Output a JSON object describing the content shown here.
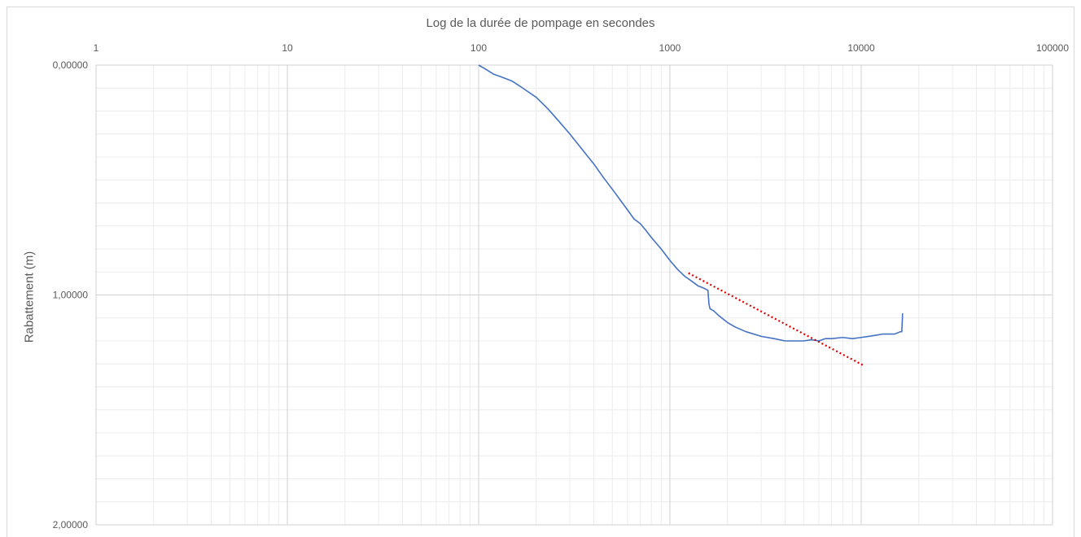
{
  "chart_data": {
    "type": "line",
    "title": "",
    "xlabel": "Log de la durée de pompage en secondes",
    "ylabel": "Rabattement (m)",
    "x_scale": "log",
    "x_axis_position": "top",
    "y_reversed": true,
    "xlim": [
      1,
      100000
    ],
    "ylim": [
      0,
      2
    ],
    "x_ticks": [
      1,
      10,
      100,
      1000,
      10000,
      100000
    ],
    "x_tick_labels": [
      "1",
      "10",
      "100",
      "1000",
      "10000",
      "100000"
    ],
    "y_ticks": [
      0,
      1,
      2
    ],
    "y_tick_labels": [
      "0,00000",
      "1,00000",
      "2,00000"
    ],
    "grid": true,
    "legend": "none",
    "series": [
      {
        "color": "#4472c4",
        "style": "solid",
        "x": [
          100,
          110,
          120,
          130,
          150,
          170,
          200,
          230,
          260,
          300,
          350,
          400,
          450,
          500,
          600,
          650,
          700,
          750,
          800,
          900,
          1000,
          1100,
          1200,
          1300,
          1400,
          1500,
          1580,
          1600,
          1620,
          1700,
          1800,
          2000,
          2200,
          2500,
          3000,
          3500,
          4000,
          4500,
          5000,
          5500,
          6000,
          6500,
          7000,
          8000,
          9000,
          10000,
          11000,
          12000,
          13000,
          14000,
          15000,
          16000,
          16300,
          16400,
          16450
        ],
        "y": [
          0.0,
          0.02,
          0.04,
          0.05,
          0.07,
          0.1,
          0.14,
          0.19,
          0.24,
          0.3,
          0.37,
          0.43,
          0.49,
          0.54,
          0.63,
          0.67,
          0.69,
          0.72,
          0.75,
          0.8,
          0.85,
          0.89,
          0.92,
          0.94,
          0.96,
          0.97,
          0.98,
          1.04,
          1.06,
          1.07,
          1.09,
          1.12,
          1.14,
          1.16,
          1.18,
          1.19,
          1.2,
          1.2,
          1.2,
          1.195,
          1.2,
          1.19,
          1.19,
          1.185,
          1.19,
          1.185,
          1.18,
          1.175,
          1.17,
          1.17,
          1.17,
          1.16,
          1.16,
          1.11,
          1.08
        ]
      },
      {
        "color": "#e00000",
        "style": "dotted",
        "x": [
          1250,
          10200
        ],
        "y": [
          0.905,
          1.305
        ]
      }
    ]
  }
}
